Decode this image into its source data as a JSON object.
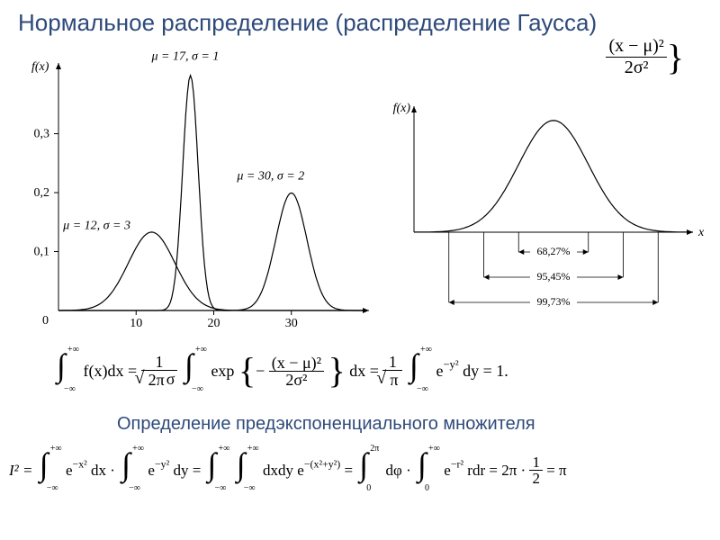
{
  "title": "Нормальное распределение (распределение Гаусса)",
  "subtitle": "Определение предэкспоненциального множителя",
  "leftChart": {
    "type": "line",
    "xlim": [
      0,
      40
    ],
    "ylim": [
      0,
      0.42
    ],
    "xtick_positions": [
      10,
      20,
      30
    ],
    "xtick_labels": [
      "10",
      "20",
      "30"
    ],
    "ytick_positions": [
      0.1,
      0.2,
      0.3
    ],
    "ytick_labels": [
      "0,1",
      "0,2",
      "0,3"
    ],
    "ylabel": "f(x)",
    "axis_color": "#000000",
    "curve_color": "#000000",
    "line_width": 1.2,
    "font_size_ticks": 14,
    "font_size_labels": 14,
    "curves": [
      {
        "label": "μ = 12, σ = 3",
        "label_x": 0.6,
        "label_y": 0.138,
        "mu": 12,
        "sigma": 3,
        "peak": 0.1329
      },
      {
        "label": "μ = 17, σ = 1",
        "label_x": 12,
        "label_y": 0.425,
        "mu": 17,
        "sigma": 1,
        "peak": 0.3989
      },
      {
        "label": "μ = 30, σ = 2",
        "label_x": 23,
        "label_y": 0.222,
        "mu": 30,
        "sigma": 2,
        "peak": 0.1995
      }
    ],
    "zero_label": "0"
  },
  "rightChart": {
    "type": "line-with-intervals",
    "ylabel": "f(x)",
    "xlabel": "x",
    "axis_color": "#000000",
    "curve_color": "#000000",
    "line_width": 1.2,
    "font_size_labels": 14,
    "font_size_pct": 12,
    "intervals": [
      {
        "label": "68,27%",
        "sigma": 1
      },
      {
        "label": "95,45%",
        "sigma": 2
      },
      {
        "label": "99,73%",
        "sigma": 3
      }
    ]
  },
  "topFormula": {
    "num": "(x − μ)²",
    "den": "2σ²",
    "tail": "}"
  },
  "integral1": {
    "lb": "−∞",
    "ub": "+∞",
    "fx": "f(x)dx",
    "eq": " = ",
    "frac1_num": "1",
    "frac1_den_mult": "σ",
    "exp_prefix": "exp",
    "exp_num": "(x − μ)²",
    "exp_den": "2σ²",
    "dx": " dx = ",
    "frac2_num": "1",
    "frac2_den": "π",
    "e_expr": "e",
    "e_sup": "−y²",
    "dy": "dy = 1.",
    "sqrt_2pi": "2π"
  },
  "integral2": {
    "I2": "I² = ",
    "lb": "−∞",
    "ub": "+∞",
    "lb0": "0",
    "ub2pi": "2π",
    "ex2": "e",
    "ex2_sup": "−x²",
    "dx": "dx · ",
    "ey2": "e",
    "ey2_sup": "−y²",
    "dy": "dy = ",
    "dxdy": "dxdy e",
    "dxdy_sup": "−(x²+y²)",
    "eq2": " = ",
    "dphi": "dφ · ",
    "er2": "e",
    "er2_sup": "−r²",
    "rdr": "rdr = 2π · ",
    "half_num": "1",
    "half_den": "2",
    "tail": " = π"
  },
  "colors": {
    "title": "#2e4a7a",
    "text": "#000000",
    "bg": "#ffffff"
  }
}
